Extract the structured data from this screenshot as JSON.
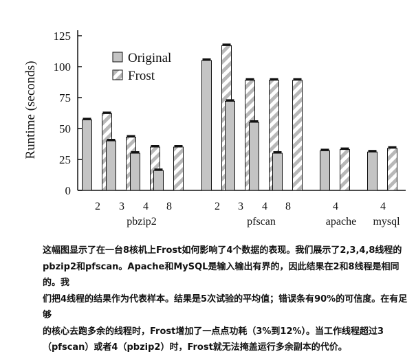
{
  "chart_data": {
    "type": "bar",
    "ylabel": "Runtime (seconds)",
    "ylim": [
      0,
      130
    ],
    "yticks": [
      0,
      25,
      50,
      75,
      100,
      125
    ],
    "legend": {
      "placement": "top-left",
      "entries": [
        "Original",
        "Frost"
      ]
    },
    "series": [
      {
        "name": "Original",
        "color": "#c4c4c4",
        "pattern": "solid"
      },
      {
        "name": "Frost",
        "color": "#c4c4c4",
        "pattern": "diagonal-hatch"
      }
    ],
    "groups": [
      {
        "label": "pbzip2",
        "bars": [
          {
            "x": "2",
            "original": 57,
            "frost": 62
          },
          {
            "x": "3",
            "original": 40,
            "frost": 43
          },
          {
            "x": "4",
            "original": 30,
            "frost": 35
          },
          {
            "x": "8",
            "original": 16,
            "frost": 35
          }
        ]
      },
      {
        "label": "pfscan",
        "bars": [
          {
            "x": "2",
            "original": 105,
            "frost": 117
          },
          {
            "x": "3",
            "original": 72,
            "frost": 89
          },
          {
            "x": "4",
            "original": 55,
            "frost": 89
          },
          {
            "x": "8",
            "original": 30,
            "frost": 89
          }
        ]
      },
      {
        "label": "apache",
        "bars": [
          {
            "x": "4",
            "original": 32,
            "frost": 33
          }
        ]
      },
      {
        "label": "mysql",
        "bars": [
          {
            "x": "4",
            "original": 31,
            "frost": 34
          }
        ]
      }
    ],
    "error_bars": true
  },
  "caption": {
    "lines": [
      "这幅图显示了在一台8核机上Frost如何影响了4个数据的表现。我们展示了2,3,4,8线程的",
      "pbzip2和pfscan。Apache和MySQL是输入输出有界的，因此结果在2和8线程是相同的。我",
      "们把4线程的结果作为代表样本。结果是5次试验的平均值；错误条有90%的可信度。在有足够",
      "的核心去跑多余的线程时，Frost增加了一点点功耗（3%到12%）。当工作线程超过3",
      "（pfscan）或者4（pbzip2）时，Frost就无法掩盖运行多余副本的代价。"
    ]
  }
}
